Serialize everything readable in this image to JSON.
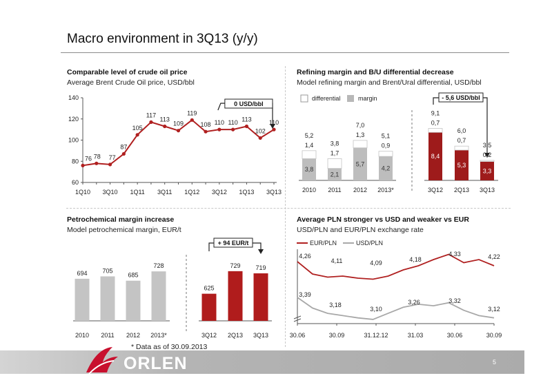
{
  "slide": {
    "title": "Macro environment in 3Q13 (y/y)",
    "footnote": "* Data as of 30.09.2013",
    "page_number": "5",
    "logo_text": "ORLEN",
    "colors": {
      "accent": "#9e1b1b",
      "grey_bar": "#c0c0c0",
      "line_red": "#b02020",
      "line_grey": "#a8a8a8"
    }
  },
  "panels": {
    "crude": {
      "title": "Comparable level of crude oil price",
      "subtitle": "Average Brent Crude Oil price, USD/bbl",
      "callout": "0 USD/bbl"
    },
    "refining": {
      "title": "Refining margin and B/U differential decrease",
      "subtitle": "Model refining margin and Brent/Ural differential, USD/bbl",
      "callout": "- 5,6 USD/bbl"
    },
    "petchem": {
      "title": "Petrochemical margin increase",
      "subtitle": "Model petrochemical margin, EUR/t",
      "callout": "+ 94 EUR/t"
    },
    "fx": {
      "title": "Average PLN stronger vs USD and weaker vs EUR",
      "subtitle": "USD/PLN and EUR/PLN exchange rate"
    }
  },
  "chart_data": [
    {
      "id": "crude",
      "type": "line",
      "x": [
        "1Q10",
        "2Q10",
        "3Q10",
        "4Q10",
        "1Q11",
        "2Q11",
        "3Q11",
        "4Q11",
        "1Q12",
        "2Q12",
        "3Q12",
        "4Q12",
        "1Q13",
        "2Q13",
        "3Q13"
      ],
      "x_tick_labels": [
        "1Q10",
        "3Q10",
        "1Q11",
        "3Q11",
        "1Q12",
        "3Q12",
        "1Q13",
        "3Q13"
      ],
      "series": [
        {
          "values": [
            76,
            78,
            77,
            87,
            105,
            117,
            113,
            109,
            119,
            108,
            110,
            110,
            113,
            102,
            110
          ]
        }
      ],
      "ylim": [
        60,
        140
      ],
      "yticks": [
        60,
        80,
        100,
        120,
        140
      ],
      "grid": false,
      "color": "#b02020"
    },
    {
      "id": "refining",
      "type": "bar",
      "stacked": true,
      "categories": [
        "2010",
        "2011",
        "2012",
        "2013*",
        "3Q12",
        "2Q13",
        "3Q13"
      ],
      "legend": [
        "differential",
        "margin"
      ],
      "series": [
        {
          "name": "margin",
          "values": [
            3.8,
            2.1,
            5.7,
            4.2,
            8.4,
            5.3,
            3.3
          ],
          "labels": [
            "3,8",
            "2,1",
            "5,7",
            "4,2",
            "8,4",
            "5,3",
            "3,3"
          ]
        },
        {
          "name": "differential",
          "values": [
            1.4,
            1.7,
            1.3,
            0.9,
            0.7,
            0.7,
            0.2
          ],
          "labels": [
            "1,4",
            "1,7",
            "1,3",
            "0,9",
            "0,7",
            "0,7",
            "0,2"
          ]
        }
      ],
      "totals": [
        "5,2",
        "3,8",
        "7,0",
        "5,1",
        "9,1",
        "6,0",
        "3,5"
      ],
      "ylim": [
        0,
        10
      ]
    },
    {
      "id": "petchem",
      "type": "bar",
      "categories": [
        "2010",
        "2011",
        "2012",
        "2013*",
        "3Q12",
        "2Q13",
        "3Q13"
      ],
      "values": [
        694,
        705,
        685,
        728,
        625,
        729,
        719
      ],
      "ylim": [
        500,
        760
      ]
    },
    {
      "id": "fx",
      "type": "line",
      "x_tick_labels": [
        "30.06",
        "30.09",
        "31.12.12",
        "31.03",
        "30.06",
        "30.09"
      ],
      "series": [
        {
          "name": "EUR/PLN",
          "values": [
            4.26,
            4.14,
            4.11,
            4.12,
            4.1,
            4.09,
            4.12,
            4.18,
            4.22,
            4.28,
            4.33,
            4.25,
            4.28,
            4.22
          ],
          "labels": [
            "4,26",
            "4,11",
            "4,09",
            "4,18",
            "4,33",
            "4,22"
          ]
        },
        {
          "name": "USD/PLN",
          "values": [
            3.39,
            3.25,
            3.18,
            3.15,
            3.12,
            3.1,
            3.18,
            3.26,
            3.3,
            3.28,
            3.32,
            3.22,
            3.15,
            3.12
          ],
          "labels": [
            "3,39",
            "3,18",
            "3,10",
            "3,26",
            "3,32",
            "3,12"
          ]
        }
      ],
      "axis_break": true
    }
  ]
}
